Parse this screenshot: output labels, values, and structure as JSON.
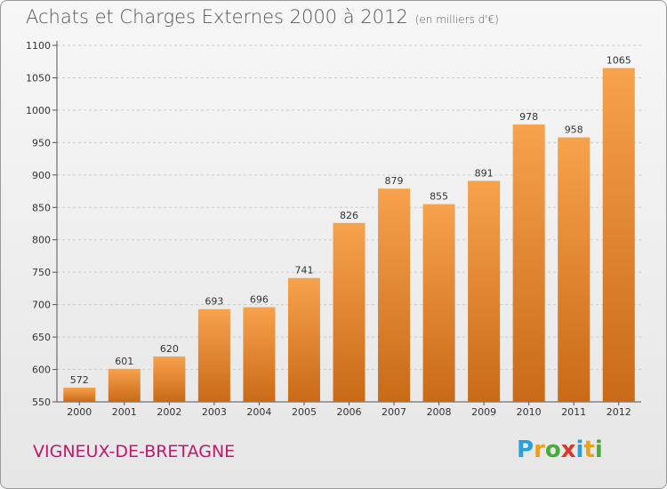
{
  "header": {
    "title": "Achats et Charges Externes 2000 à 2012",
    "subtitle": "(en milliers d'€)"
  },
  "commune": "VIGNEUX-DE-BRETAGNE",
  "logo": {
    "letters": [
      "P",
      "r",
      "o",
      "x",
      "i",
      "t",
      "i"
    ],
    "colors": [
      "#2aa0d8",
      "#e8a21a",
      "#4aab3c",
      "#d9372a",
      "#2aa0d8",
      "#e8a21a",
      "#4aab3c"
    ]
  },
  "chart_data": {
    "type": "bar",
    "title": "Achats et Charges Externes 2000 à 2012",
    "categories": [
      "2000",
      "2001",
      "2002",
      "2003",
      "2004",
      "2005",
      "2006",
      "2007",
      "2008",
      "2009",
      "2010",
      "2011",
      "2012"
    ],
    "values": [
      572,
      601,
      620,
      693,
      696,
      741,
      826,
      879,
      855,
      891,
      978,
      958,
      1065
    ],
    "ylim": [
      550,
      1100
    ],
    "yticks": [
      550,
      600,
      650,
      700,
      750,
      800,
      850,
      900,
      950,
      1000,
      1050,
      1100
    ],
    "grid": true,
    "colors": {
      "bar_light": "#f7a24d",
      "bar_dark": "#c96a17",
      "grid": "#cccccc",
      "axis": "#555555"
    }
  }
}
